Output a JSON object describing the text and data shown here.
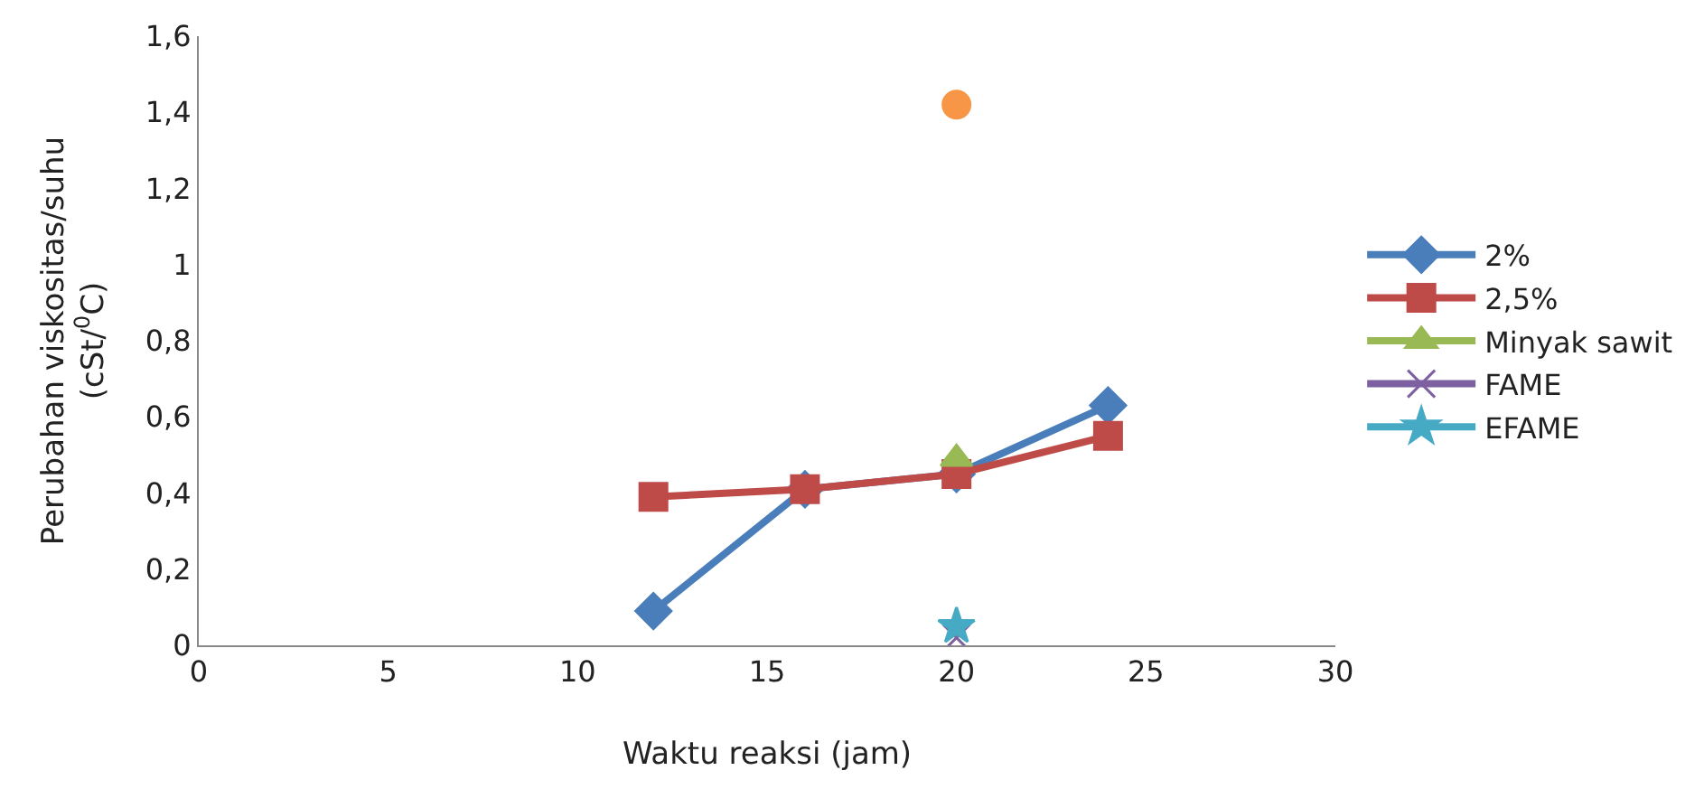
{
  "chart_data": {
    "type": "line",
    "xlabel": "Waktu reaksi (jam)",
    "ylabel": "Perubahan viskositas/suhu\n(cSt/$^{0}$C)",
    "xlim": [
      0,
      30
    ],
    "xticks": [
      0,
      5,
      10,
      15,
      20,
      25,
      30
    ],
    "ylim": [
      0,
      1.6
    ],
    "yticks": [
      0,
      {
        "value": 0.2,
        "label": "0,2"
      },
      {
        "value": 0.4,
        "label": "0,4"
      },
      {
        "value": 0.6,
        "label": "0,6"
      },
      {
        "value": 0.8,
        "label": "0,8"
      },
      1,
      {
        "value": 1.2,
        "label": "1,2"
      },
      {
        "value": 1.4,
        "label": "1,4"
      },
      {
        "value": 1.6,
        "label": "1,6"
      }
    ],
    "legend": "right",
    "line_style": "solid",
    "series": [
      {
        "name": "2%",
        "color": "#4a7ebb",
        "marker": "diamond",
        "x": [
          12,
          16,
          20,
          24
        ],
        "values": [
          0.09,
          0.41,
          0.45,
          0.63
        ]
      },
      {
        "name": "2,5%",
        "color": "#be4b48",
        "marker": "square",
        "x": [
          12,
          16,
          20,
          24
        ],
        "values": [
          0.39,
          0.41,
          0.45,
          0.55
        ]
      },
      {
        "name": "Minyak sawit",
        "color": "#98b954",
        "marker": "triangle",
        "x": [
          20
        ],
        "values": [
          0.49
        ]
      },
      {
        "name": "FAME",
        "color": "#7d60a0",
        "marker": "cross",
        "x": [
          20
        ],
        "values": [
          0.02
        ]
      },
      {
        "name": "EFAME",
        "color": "#46aac5",
        "marker": "star",
        "x": [
          20
        ],
        "values": [
          0.05
        ]
      },
      {
        "color": "#f79646",
        "marker": "circle",
        "x": [
          20
        ],
        "values": [
          1.42
        ]
      }
    ]
  }
}
